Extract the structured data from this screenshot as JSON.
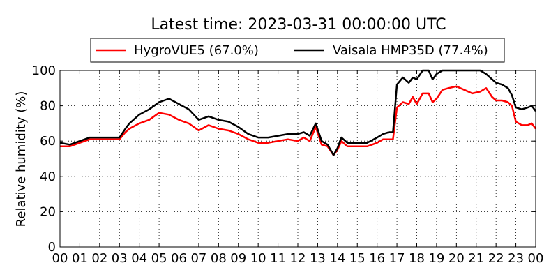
{
  "chart_data": {
    "type": "line",
    "title": "Latest time: 2023-03-31 00:00:00 UTC",
    "xlabel": "",
    "ylabel": "Relative humidity (%)",
    "xlim": [
      0,
      24
    ],
    "ylim": [
      0,
      100
    ],
    "grid": true,
    "legend_position": "top-center",
    "x_tick_values": [
      0,
      1,
      2,
      3,
      4,
      5,
      6,
      7,
      8,
      9,
      10,
      11,
      12,
      13,
      14,
      15,
      16,
      17,
      18,
      19,
      20,
      21,
      22,
      23,
      24
    ],
    "x_tick_labels": [
      "00",
      "01",
      "02",
      "03",
      "04",
      "05",
      "06",
      "07",
      "08",
      "09",
      "10",
      "11",
      "12",
      "13",
      "14",
      "15",
      "16",
      "17",
      "18",
      "19",
      "20",
      "21",
      "22",
      "23",
      "00"
    ],
    "y_tick_values": [
      0,
      20,
      40,
      60,
      80,
      100
    ],
    "y_tick_labels": [
      "0",
      "20",
      "40",
      "60",
      "80",
      "100"
    ],
    "x": [
      0,
      0.5,
      1,
      1.5,
      2,
      2.5,
      3,
      3.3,
      3.5,
      4,
      4.5,
      5,
      5.5,
      6,
      6.5,
      7,
      7.5,
      8,
      8.5,
      9,
      9.5,
      10,
      10.5,
      11,
      11.5,
      12,
      12.3,
      12.6,
      12.9,
      13.2,
      13.5,
      13.8,
      14,
      14.2,
      14.5,
      15,
      15.5,
      16,
      16.3,
      16.6,
      16.8,
      17,
      17.3,
      17.6,
      17.8,
      18,
      18.3,
      18.6,
      18.8,
      19,
      19.3,
      19.6,
      20,
      20.4,
      20.8,
      21.2,
      21.5,
      21.8,
      22,
      22.3,
      22.6,
      22.8,
      23,
      23.3,
      23.6,
      23.8,
      24
    ],
    "series": [
      {
        "name": "HygroVUE5 (67.0%)",
        "color": "#ff0000",
        "values": [
          57,
          57,
          59,
          61,
          61,
          61,
          61,
          65,
          67,
          70,
          72,
          76,
          75,
          72,
          70,
          66,
          69,
          67,
          66,
          64,
          61,
          59,
          59,
          60,
          61,
          60,
          62,
          60,
          68,
          58,
          57,
          52,
          55,
          60,
          57,
          57,
          57,
          59,
          61,
          61,
          61,
          79,
          82,
          81,
          85,
          81,
          87,
          87,
          82,
          84,
          89,
          90,
          91,
          89,
          87,
          88,
          90,
          85,
          83,
          83,
          82,
          80,
          71,
          69,
          69,
          70,
          67
        ]
      },
      {
        "name": "Vaisala HMP35D (77.4%)",
        "color": "#000000",
        "values": [
          59,
          58,
          60,
          62,
          62,
          62,
          62,
          67,
          70,
          75,
          78,
          82,
          84,
          81,
          78,
          72,
          74,
          72,
          71,
          68,
          64,
          62,
          62,
          63,
          64,
          64,
          65,
          63,
          70,
          60,
          58,
          52,
          56,
          62,
          59,
          59,
          59,
          62,
          64,
          65,
          65,
          92,
          96,
          93,
          96,
          95,
          100,
          100,
          95,
          98,
          100,
          100,
          100,
          100,
          100,
          100,
          98,
          95,
          93,
          92,
          90,
          86,
          79,
          78,
          79,
          80,
          77
        ]
      }
    ]
  }
}
